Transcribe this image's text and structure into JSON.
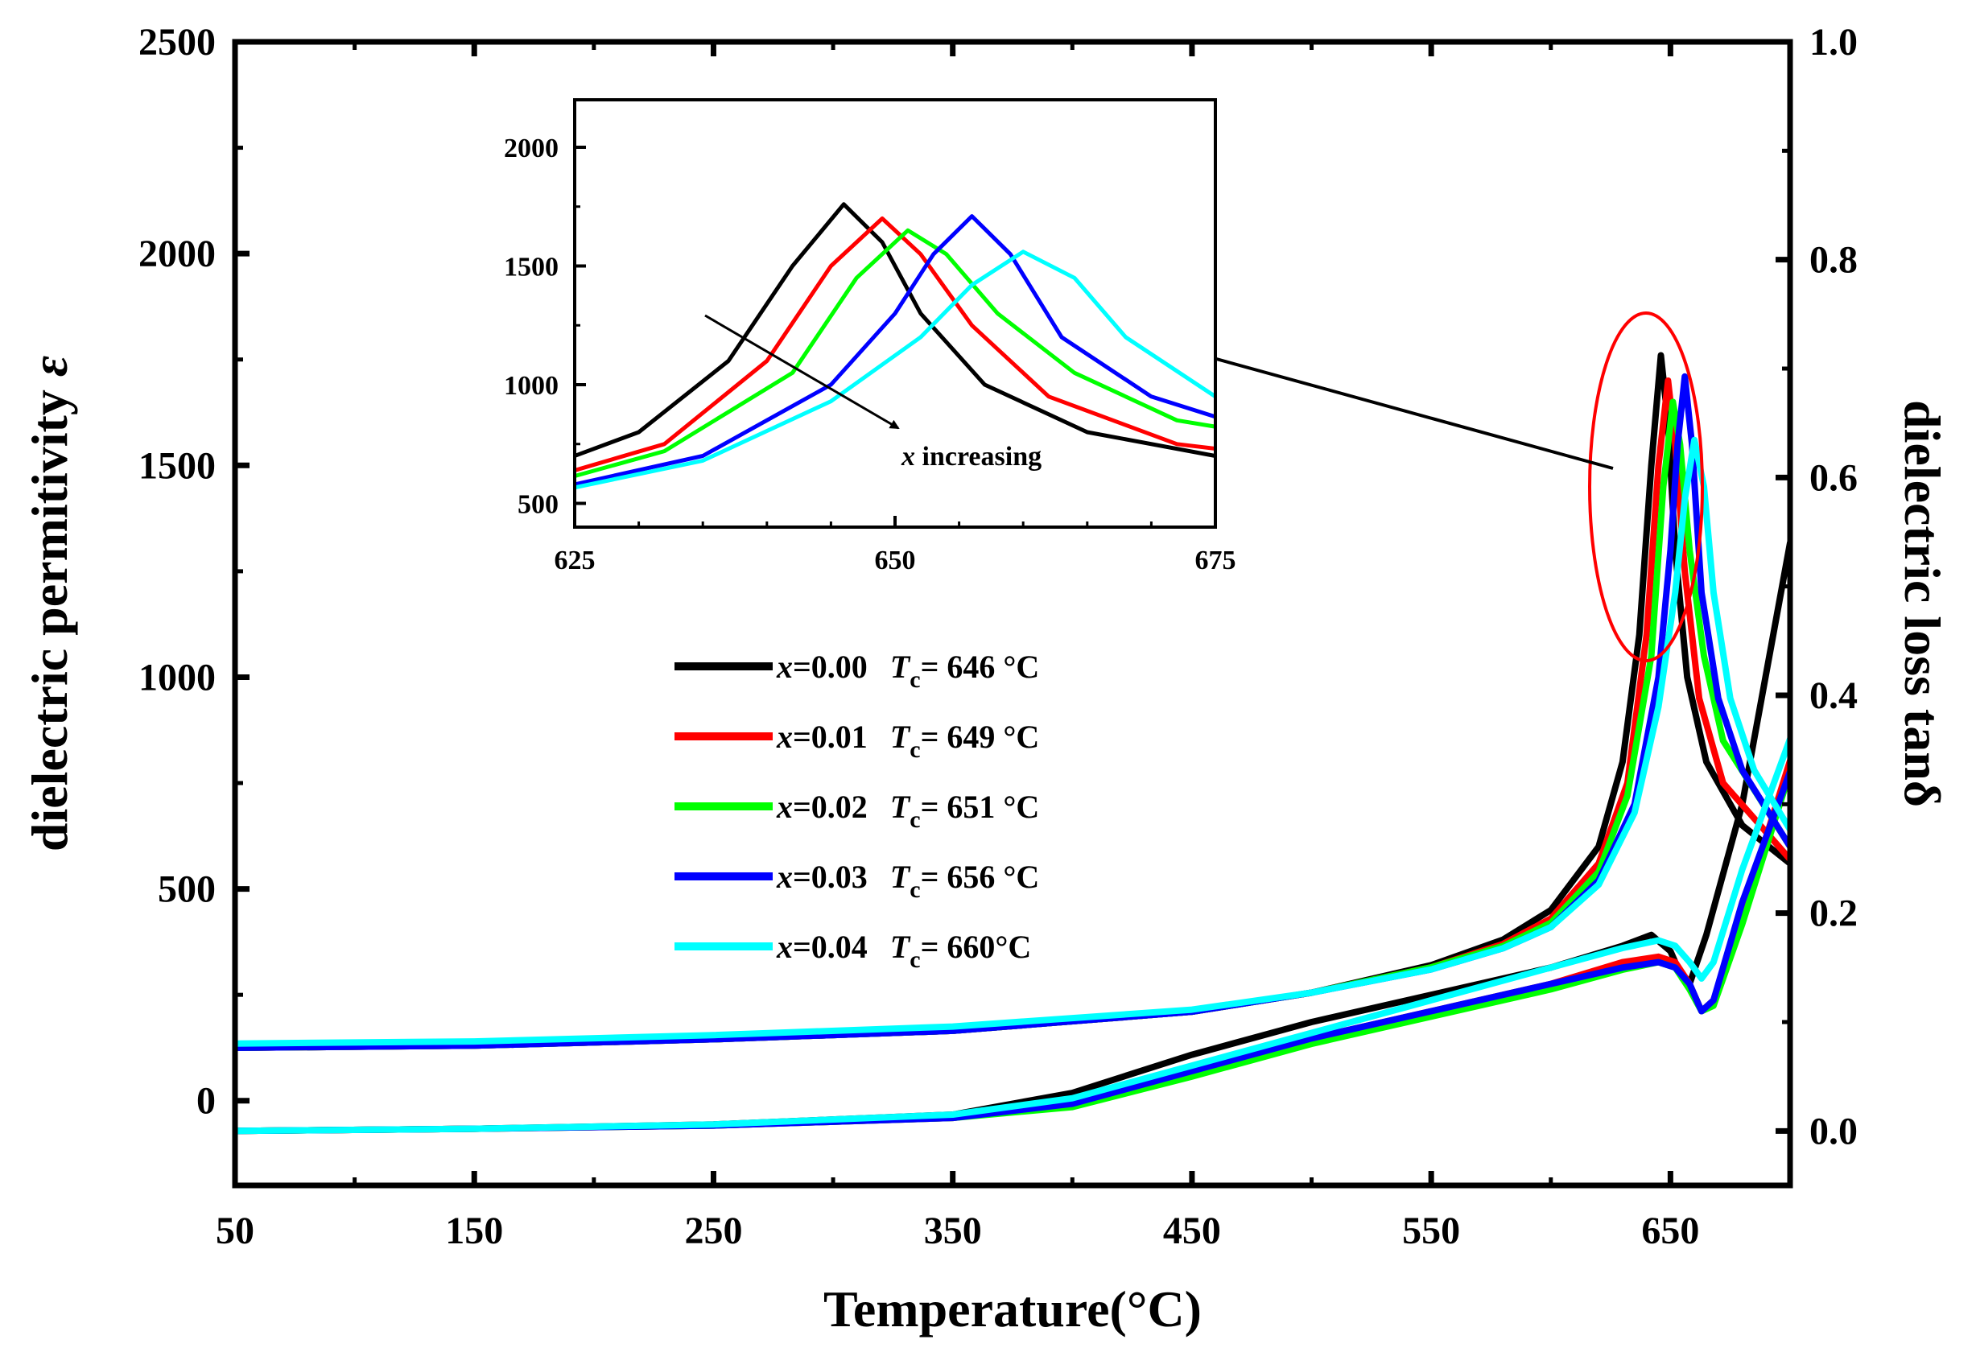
{
  "chart_data": {
    "type": "line",
    "main": {
      "xlabel": "Temperature(°C)",
      "ylabel_left": "dielectric permitivity ",
      "ylabel_left_symbol": "ε",
      "ylabel_right": "dielectric loss tanδ",
      "xlim": [
        50,
        700
      ],
      "ylim_left": [
        -200,
        2500
      ],
      "ylim_right": [
        -0.05,
        1.0
      ],
      "xticks": [
        50,
        150,
        250,
        350,
        450,
        550,
        650
      ],
      "yticks_left": [
        0,
        500,
        1000,
        1500,
        2000,
        2500
      ],
      "yticks_right": [
        0.0,
        0.2,
        0.4,
        0.6,
        0.8,
        1.0
      ],
      "ytick_labels_right": [
        "0.0",
        "0.2",
        "0.4",
        "0.6",
        "0.8",
        "1.0"
      ]
    },
    "legend": [
      {
        "x_italic": "x",
        "x_text": "=0.00",
        "t_italic": "T",
        "t_sub": "c",
        "t_text": "= 646 °C",
        "color": "#000000"
      },
      {
        "x_italic": "x",
        "x_text": "=0.01",
        "t_italic": "T",
        "t_sub": "c",
        "t_text": "= 649 °C",
        "color": "#ff0000"
      },
      {
        "x_italic": "x",
        "x_text": "=0.02",
        "t_italic": "T",
        "t_sub": "c",
        "t_text": "= 651 °C",
        "color": "#00ff00"
      },
      {
        "x_italic": "x",
        "x_text": "=0.03",
        "t_italic": "T",
        "t_sub": "c",
        "t_text": "= 656 °C",
        "color": "#0000ff"
      },
      {
        "x_italic": "x",
        "x_text": "=0.04",
        "t_italic": "T",
        "t_sub": "c",
        "t_text": "= 660°C",
        "color": "#00ffff"
      }
    ],
    "series": [
      {
        "name": "x=0.00",
        "tc": 646,
        "color": "#000000",
        "permittivity": [
          [
            50,
            125
          ],
          [
            150,
            130
          ],
          [
            250,
            145
          ],
          [
            350,
            165
          ],
          [
            450,
            210
          ],
          [
            500,
            255
          ],
          [
            550,
            320
          ],
          [
            580,
            380
          ],
          [
            600,
            450
          ],
          [
            620,
            600
          ],
          [
            630,
            800
          ],
          [
            637,
            1100
          ],
          [
            642,
            1500
          ],
          [
            646,
            1760
          ],
          [
            649,
            1600
          ],
          [
            652,
            1300
          ],
          [
            657,
            1000
          ],
          [
            665,
            800
          ],
          [
            680,
            650
          ],
          [
            700,
            560
          ]
        ],
        "loss": [
          [
            50,
            0.0
          ],
          [
            150,
            0.002
          ],
          [
            250,
            0.006
          ],
          [
            350,
            0.015
          ],
          [
            400,
            0.035
          ],
          [
            450,
            0.07
          ],
          [
            500,
            0.1
          ],
          [
            550,
            0.125
          ],
          [
            600,
            0.15
          ],
          [
            630,
            0.17
          ],
          [
            642,
            0.18
          ],
          [
            650,
            0.165
          ],
          [
            655,
            0.14
          ],
          [
            658,
            0.135
          ],
          [
            665,
            0.18
          ],
          [
            680,
            0.3
          ],
          [
            700,
            0.54
          ]
        ]
      },
      {
        "name": "x=0.01",
        "tc": 649,
        "color": "#ff0000",
        "permittivity": [
          [
            50,
            125
          ],
          [
            150,
            130
          ],
          [
            250,
            145
          ],
          [
            350,
            165
          ],
          [
            450,
            210
          ],
          [
            500,
            255
          ],
          [
            550,
            315
          ],
          [
            580,
            370
          ],
          [
            600,
            430
          ],
          [
            620,
            560
          ],
          [
            632,
            750
          ],
          [
            640,
            1100
          ],
          [
            645,
            1500
          ],
          [
            649,
            1700
          ],
          [
            652,
            1550
          ],
          [
            656,
            1250
          ],
          [
            662,
            950
          ],
          [
            672,
            750
          ],
          [
            700,
            570
          ]
        ],
        "loss": [
          [
            50,
            0.0
          ],
          [
            150,
            0.002
          ],
          [
            250,
            0.005
          ],
          [
            350,
            0.012
          ],
          [
            400,
            0.025
          ],
          [
            450,
            0.055
          ],
          [
            500,
            0.085
          ],
          [
            550,
            0.11
          ],
          [
            600,
            0.135
          ],
          [
            630,
            0.155
          ],
          [
            645,
            0.16
          ],
          [
            652,
            0.155
          ],
          [
            658,
            0.135
          ],
          [
            663,
            0.11
          ],
          [
            668,
            0.12
          ],
          [
            680,
            0.2
          ],
          [
            700,
            0.34
          ]
        ]
      },
      {
        "name": "x=0.02",
        "tc": 651,
        "color": "#00ff00",
        "permittivity": [
          [
            50,
            125
          ],
          [
            150,
            130
          ],
          [
            250,
            145
          ],
          [
            350,
            165
          ],
          [
            450,
            210
          ],
          [
            500,
            255
          ],
          [
            550,
            315
          ],
          [
            580,
            365
          ],
          [
            600,
            420
          ],
          [
            620,
            540
          ],
          [
            632,
            720
          ],
          [
            642,
            1050
          ],
          [
            647,
            1450
          ],
          [
            651,
            1650
          ],
          [
            654,
            1550
          ],
          [
            658,
            1300
          ],
          [
            664,
            1050
          ],
          [
            672,
            850
          ],
          [
            700,
            600
          ]
        ],
        "loss": [
          [
            50,
            0.0
          ],
          [
            150,
            0.002
          ],
          [
            250,
            0.005
          ],
          [
            350,
            0.012
          ],
          [
            400,
            0.022
          ],
          [
            450,
            0.05
          ],
          [
            500,
            0.08
          ],
          [
            550,
            0.105
          ],
          [
            600,
            0.13
          ],
          [
            630,
            0.148
          ],
          [
            645,
            0.155
          ],
          [
            652,
            0.15
          ],
          [
            658,
            0.13
          ],
          [
            663,
            0.11
          ],
          [
            668,
            0.115
          ],
          [
            680,
            0.19
          ],
          [
            700,
            0.33
          ]
        ]
      },
      {
        "name": "x=0.03",
        "tc": 656,
        "color": "#0000ff",
        "permittivity": [
          [
            50,
            125
          ],
          [
            150,
            130
          ],
          [
            250,
            145
          ],
          [
            350,
            165
          ],
          [
            450,
            210
          ],
          [
            500,
            255
          ],
          [
            550,
            310
          ],
          [
            580,
            360
          ],
          [
            600,
            410
          ],
          [
            620,
            520
          ],
          [
            635,
            700
          ],
          [
            645,
            1000
          ],
          [
            650,
            1300
          ],
          [
            653,
            1550
          ],
          [
            656,
            1710
          ],
          [
            659,
            1550
          ],
          [
            663,
            1200
          ],
          [
            670,
            950
          ],
          [
            680,
            780
          ],
          [
            700,
            600
          ]
        ],
        "loss": [
          [
            50,
            0.0
          ],
          [
            150,
            0.002
          ],
          [
            250,
            0.005
          ],
          [
            350,
            0.012
          ],
          [
            400,
            0.025
          ],
          [
            450,
            0.055
          ],
          [
            500,
            0.085
          ],
          [
            550,
            0.11
          ],
          [
            600,
            0.135
          ],
          [
            630,
            0.15
          ],
          [
            645,
            0.155
          ],
          [
            652,
            0.15
          ],
          [
            658,
            0.135
          ],
          [
            663,
            0.11
          ],
          [
            668,
            0.12
          ],
          [
            680,
            0.21
          ],
          [
            700,
            0.33
          ]
        ]
      },
      {
        "name": "x=0.04",
        "tc": 660,
        "color": "#00ffff",
        "permittivity": [
          [
            50,
            135
          ],
          [
            150,
            140
          ],
          [
            250,
            155
          ],
          [
            350,
            175
          ],
          [
            450,
            215
          ],
          [
            500,
            255
          ],
          [
            550,
            310
          ],
          [
            580,
            360
          ],
          [
            600,
            410
          ],
          [
            620,
            510
          ],
          [
            635,
            680
          ],
          [
            645,
            930
          ],
          [
            652,
            1200
          ],
          [
            656,
            1420
          ],
          [
            660,
            1560
          ],
          [
            664,
            1450
          ],
          [
            668,
            1200
          ],
          [
            675,
            950
          ],
          [
            685,
            780
          ],
          [
            700,
            640
          ]
        ],
        "loss": [
          [
            50,
            0.0
          ],
          [
            150,
            0.002
          ],
          [
            250,
            0.006
          ],
          [
            350,
            0.015
          ],
          [
            400,
            0.03
          ],
          [
            450,
            0.06
          ],
          [
            500,
            0.09
          ],
          [
            550,
            0.12
          ],
          [
            600,
            0.15
          ],
          [
            630,
            0.168
          ],
          [
            645,
            0.175
          ],
          [
            652,
            0.17
          ],
          [
            658,
            0.155
          ],
          [
            663,
            0.14
          ],
          [
            668,
            0.155
          ],
          [
            680,
            0.24
          ],
          [
            700,
            0.36
          ]
        ]
      }
    ],
    "inset": {
      "xlim": [
        625,
        675
      ],
      "ylim": [
        400,
        2200
      ],
      "xticks": [
        625,
        650,
        675
      ],
      "yticks": [
        500,
        1000,
        1500,
        2000
      ],
      "annotation_italic": "x",
      "annotation_text": " increasing"
    }
  }
}
